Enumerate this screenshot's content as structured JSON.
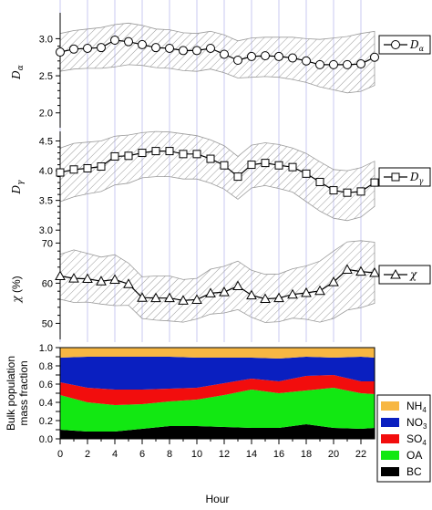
{
  "colors": {
    "NH4": "#f7b743",
    "NO3": "#0a1fc0",
    "SO4": "#f20d0d",
    "OA": "#12e812",
    "BC": "#000000",
    "vgrid": "#c8c8f0",
    "band_hatch": "#9a9a9a"
  },
  "chart_data": [
    {
      "type": "line",
      "panel": "D_alpha",
      "ylabel_main": "D",
      "ylabel_sub": "α",
      "legend_main": "D",
      "legend_sub": "α",
      "marker": "circle",
      "ylim": [
        1.8,
        3.3
      ],
      "yticks": [
        "2.0",
        "2.5",
        "3.0"
      ],
      "ytick_values": [
        2.0,
        2.5,
        3.0
      ],
      "x": [
        0,
        1,
        2,
        3,
        4,
        5,
        6,
        7,
        8,
        9,
        10,
        11,
        12,
        13,
        14,
        15,
        16,
        17,
        18,
        19,
        20,
        21,
        22,
        23
      ],
      "values": [
        2.82,
        2.86,
        2.87,
        2.88,
        2.98,
        2.96,
        2.92,
        2.88,
        2.87,
        2.84,
        2.84,
        2.87,
        2.79,
        2.71,
        2.76,
        2.77,
        2.76,
        2.74,
        2.7,
        2.65,
        2.65,
        2.65,
        2.66,
        2.75
      ],
      "band_upper": [
        3.07,
        3.11,
        3.13,
        3.15,
        3.19,
        3.21,
        3.18,
        3.13,
        3.12,
        3.08,
        3.07,
        3.1,
        3.05,
        2.97,
        3.01,
        3.02,
        3.02,
        3.02,
        3.0,
        2.99,
        3.01,
        3.03,
        3.07,
        3.1
      ],
      "band_lower": [
        2.56,
        2.59,
        2.6,
        2.6,
        2.62,
        2.65,
        2.64,
        2.61,
        2.6,
        2.57,
        2.56,
        2.59,
        2.54,
        2.47,
        2.48,
        2.49,
        2.48,
        2.45,
        2.41,
        2.35,
        2.31,
        2.27,
        2.29,
        2.37
      ]
    },
    {
      "type": "line",
      "panel": "D_gamma",
      "ylabel_main": "D",
      "ylabel_sub": "γ",
      "legend_main": "D",
      "legend_sub": "γ",
      "marker": "square",
      "ylim": [
        2.85,
        4.6
      ],
      "yticks": [
        "3.0",
        "3.5",
        "4.0",
        "4.5"
      ],
      "ytick_values": [
        3.0,
        3.5,
        4.0,
        4.5
      ],
      "x": [
        0,
        1,
        2,
        3,
        4,
        5,
        6,
        7,
        8,
        9,
        10,
        11,
        12,
        13,
        14,
        15,
        16,
        17,
        18,
        19,
        20,
        21,
        22,
        23
      ],
      "values": [
        3.97,
        4.02,
        4.04,
        4.07,
        4.24,
        4.25,
        4.3,
        4.33,
        4.33,
        4.28,
        4.28,
        4.2,
        4.09,
        3.9,
        4.1,
        4.13,
        4.09,
        4.06,
        3.95,
        3.81,
        3.67,
        3.63,
        3.65,
        3.8
      ],
      "band_upper": [
        4.38,
        4.46,
        4.48,
        4.5,
        4.58,
        4.6,
        4.64,
        4.66,
        4.65,
        4.62,
        4.59,
        4.52,
        4.42,
        4.24,
        4.43,
        4.47,
        4.44,
        4.38,
        4.29,
        4.15,
        4.02,
        4.0,
        4.05,
        4.16
      ],
      "band_lower": [
        3.48,
        3.56,
        3.61,
        3.65,
        3.76,
        3.79,
        3.88,
        3.9,
        3.9,
        3.86,
        3.86,
        3.79,
        3.69,
        3.52,
        3.71,
        3.75,
        3.7,
        3.64,
        3.48,
        3.32,
        3.2,
        3.16,
        3.22,
        3.4
      ]
    },
    {
      "type": "line",
      "panel": "chi",
      "ylabel_main": "χ",
      "ylabel_plain": "(%)",
      "legend_main": "χ",
      "marker": "triangle",
      "ylim": [
        46,
        71
      ],
      "yticks": [
        "50",
        "60",
        "70"
      ],
      "ytick_values": [
        50,
        60,
        70
      ],
      "x": [
        0,
        1,
        2,
        3,
        4,
        5,
        6,
        7,
        8,
        9,
        10,
        11,
        12,
        13,
        14,
        15,
        16,
        17,
        18,
        19,
        20,
        21,
        22,
        23
      ],
      "values": [
        61.8,
        61.2,
        61.1,
        60.5,
        60.9,
        59.8,
        56.4,
        56.3,
        56.3,
        55.7,
        55.9,
        57.5,
        57.8,
        59.3,
        57.0,
        56.1,
        56.3,
        57.2,
        57.6,
        58.1,
        60.3,
        63.4,
        62.9,
        62.6
      ],
      "band_upper": [
        67.2,
        68.3,
        67.4,
        66.5,
        67.1,
        65.0,
        61.6,
        61.8,
        61.8,
        60.9,
        61.2,
        63.5,
        64.2,
        65.5,
        63.2,
        62.2,
        62.3,
        63.6,
        64.3,
        65.5,
        68.0,
        70.3,
        70.6,
        70.2
      ],
      "band_lower": [
        56.0,
        55.2,
        55.3,
        54.8,
        54.4,
        54.5,
        51.2,
        50.8,
        50.6,
        50.3,
        51.1,
        52.3,
        52.6,
        53.4,
        51.5,
        50.2,
        50.4,
        51.3,
        51.0,
        50.3,
        51.2,
        53.3,
        53.9,
        55.0
      ]
    },
    {
      "type": "area",
      "panel": "mass_fraction",
      "stacked": true,
      "ylabel_line1": "Bulk population",
      "ylabel_line2": "mass fraction",
      "xlabel": "Hour",
      "ylim": [
        0.0,
        1.0
      ],
      "yticks": [
        "0.0",
        "0.1",
        "0.2",
        "0.3",
        "0.4",
        "0.5",
        "0.6",
        "0.7",
        "0.8",
        "0.9",
        "1.0"
      ],
      "ytick_values": [
        0.0,
        0.1,
        0.2,
        0.3,
        0.4,
        0.5,
        0.6,
        0.7,
        0.8,
        0.9,
        1.0
      ],
      "xticks": [
        "0",
        "2",
        "4",
        "6",
        "8",
        "10",
        "12",
        "14",
        "16",
        "18",
        "20",
        "22"
      ],
      "xtick_values": [
        0,
        2,
        4,
        6,
        8,
        10,
        12,
        14,
        16,
        18,
        20,
        22
      ],
      "xlim": [
        0,
        23
      ],
      "x": [
        0,
        2,
        4,
        6,
        8,
        10,
        12,
        14,
        16,
        18,
        20,
        22,
        23
      ],
      "series": [
        {
          "name": "BC",
          "label": "BC",
          "sub": "",
          "values": [
            0.1,
            0.08,
            0.08,
            0.11,
            0.14,
            0.14,
            0.13,
            0.12,
            0.12,
            0.16,
            0.12,
            0.11,
            0.12
          ]
        },
        {
          "name": "OA",
          "label": "OA",
          "sub": "",
          "values": [
            0.38,
            0.32,
            0.29,
            0.27,
            0.27,
            0.29,
            0.35,
            0.42,
            0.38,
            0.37,
            0.44,
            0.39,
            0.37
          ]
        },
        {
          "name": "SO4",
          "label": "SO",
          "sub": "4",
          "values": [
            0.14,
            0.16,
            0.17,
            0.16,
            0.14,
            0.13,
            0.13,
            0.12,
            0.13,
            0.16,
            0.14,
            0.13,
            0.14
          ]
        },
        {
          "name": "NO3",
          "label": "NO",
          "sub": "3",
          "values": [
            0.27,
            0.34,
            0.36,
            0.36,
            0.35,
            0.33,
            0.28,
            0.23,
            0.25,
            0.21,
            0.19,
            0.27,
            0.26
          ]
        },
        {
          "name": "NH4",
          "label": "NH",
          "sub": "4",
          "values": [
            0.11,
            0.1,
            0.1,
            0.1,
            0.1,
            0.11,
            0.11,
            0.11,
            0.12,
            0.1,
            0.11,
            0.1,
            0.11
          ]
        }
      ],
      "legend_order": [
        "NH4",
        "NO3",
        "SO4",
        "OA",
        "BC"
      ]
    }
  ]
}
